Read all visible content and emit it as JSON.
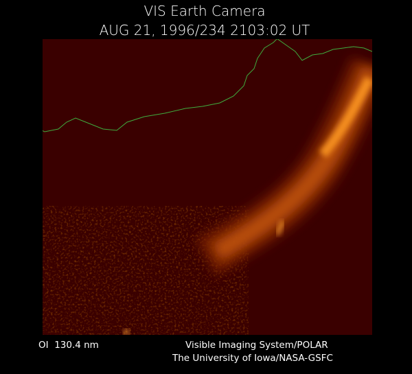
{
  "header": {
    "title": "VIS Earth Camera",
    "timestamp": "AUG 21, 1996/234 2103:02 UT"
  },
  "footer": {
    "filter": "OI  130.4 nm",
    "credit_line1": "Visible Imaging System/POLAR",
    "credit_line2": "The University of Iowa/NASA-GSFC"
  }
}
